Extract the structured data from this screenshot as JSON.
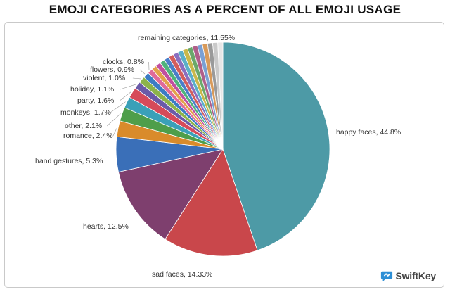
{
  "chart_data": {
    "type": "pie",
    "title": "EMOJI CATEGORIES AS A PERCENT OF ALL EMOJI USAGE",
    "slices": [
      {
        "label": "happy faces, 44.8%",
        "value": 44.8,
        "color": "#4d9aa6"
      },
      {
        "label": "sad faces, 14.33%",
        "value": 14.33,
        "color": "#c9474b"
      },
      {
        "label": "hearts, 12.5%",
        "value": 12.5,
        "color": "#7e3f6e"
      },
      {
        "label": "hand gestures, 5.3%",
        "value": 5.3,
        "color": "#3a6fb8"
      },
      {
        "label": "romance, 2.4%",
        "value": 2.4,
        "color": "#d98b2b"
      },
      {
        "label": "other, 2.1%",
        "value": 2.1,
        "color": "#4e9e4a"
      },
      {
        "label": "monkeys, 1.7%",
        "value": 1.7,
        "color": "#3aa0b8"
      },
      {
        "label": "party, 1.6%",
        "value": 1.6,
        "color": "#d64a5a"
      },
      {
        "label": "holiday, 1.1%",
        "value": 1.1,
        "color": "#6a5aa8"
      },
      {
        "label": "violent, 1.0%",
        "value": 1.0,
        "color": "#8cb34a"
      },
      {
        "label": "flowers, 0.9%",
        "value": 0.9,
        "color": "#3b7cc4"
      },
      {
        "label": "clocks, 0.8%",
        "value": 0.8,
        "color": "#e06a9a"
      },
      {
        "label": "remaining categories, 11.55%",
        "value": 11.55,
        "color": "#d8d8d8",
        "sub_colors": [
          "#e3a14a",
          "#c14fa0",
          "#4fb37c",
          "#4a7ec9",
          "#d35d5d",
          "#8a6fc0",
          "#5bb0c9",
          "#c9b84a",
          "#6aa86a",
          "#b05f8a",
          "#7aa0d4",
          "#d89a5a",
          "#9a9a9a",
          "#c9c9c9",
          "#e6e6e6"
        ]
      }
    ],
    "legend": "none"
  },
  "logo": {
    "text": "SwiftKey"
  }
}
